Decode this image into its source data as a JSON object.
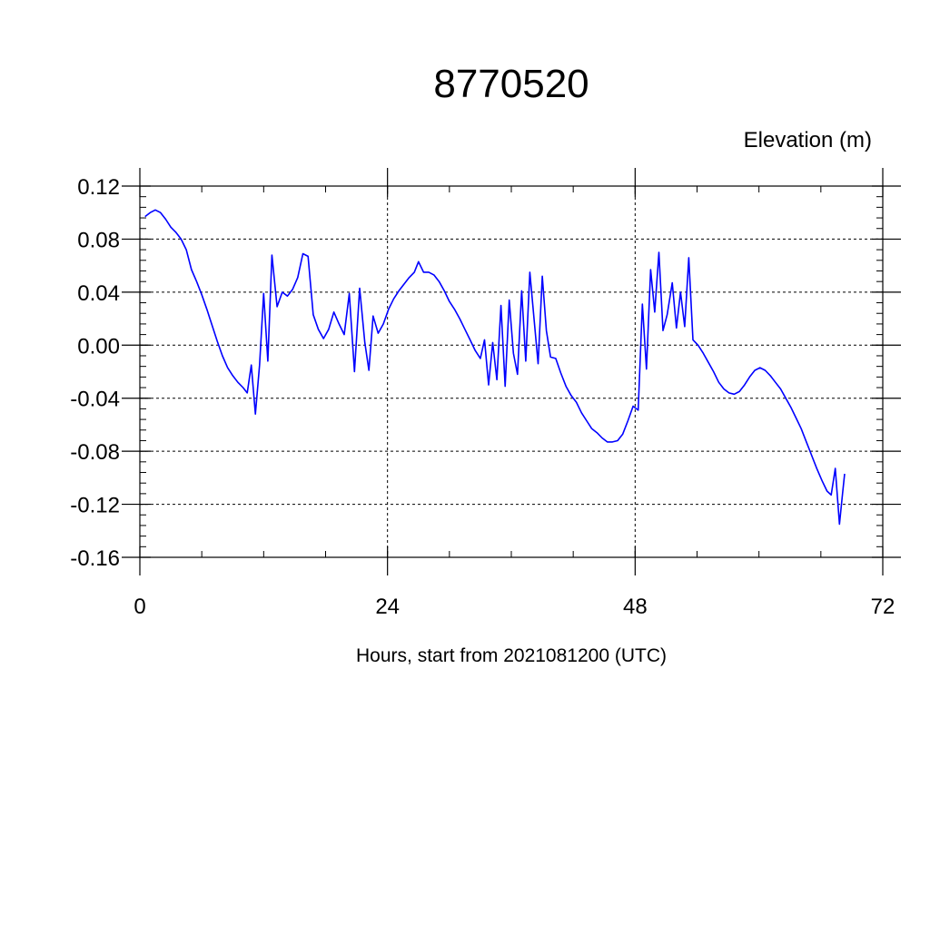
{
  "chart_data": {
    "type": "line",
    "title": "8770520",
    "subtitle": "Elevation (m)",
    "xlabel": "Hours, start from 2021081200 (UTC)",
    "ylabel": "",
    "xlim": [
      0,
      72
    ],
    "ylim": [
      -0.16,
      0.12
    ],
    "xticks": [
      0,
      24,
      48,
      72
    ],
    "xtick_labels": [
      "0",
      "24",
      "48",
      "72"
    ],
    "yticks": [
      -0.16,
      -0.12,
      -0.08,
      -0.04,
      0.0,
      0.04,
      0.08,
      0.12
    ],
    "ytick_labels": [
      "-0.16",
      "-0.12",
      "-0.08",
      "-0.04",
      "0.00",
      "0.04",
      "0.08",
      "0.12"
    ],
    "grid": true,
    "legend": "none",
    "series": [
      {
        "color": "#0000ff",
        "points": [
          [
            0.5,
            0.097
          ],
          [
            1.0,
            0.1
          ],
          [
            1.5,
            0.102
          ],
          [
            2.0,
            0.1
          ],
          [
            2.5,
            0.095
          ],
          [
            3.0,
            0.089
          ],
          [
            3.5,
            0.085
          ],
          [
            4.0,
            0.08
          ],
          [
            4.5,
            0.072
          ],
          [
            5.0,
            0.057
          ],
          [
            5.5,
            0.048
          ],
          [
            6.0,
            0.038
          ],
          [
            6.5,
            0.027
          ],
          [
            7.0,
            0.015
          ],
          [
            7.5,
            0.003
          ],
          [
            8.0,
            -0.008
          ],
          [
            8.5,
            -0.017
          ],
          [
            9.0,
            -0.023
          ],
          [
            9.5,
            -0.028
          ],
          [
            10.0,
            -0.032
          ],
          [
            10.4,
            -0.036
          ],
          [
            10.8,
            -0.015
          ],
          [
            11.2,
            -0.052
          ],
          [
            11.6,
            -0.015
          ],
          [
            12.0,
            0.039
          ],
          [
            12.4,
            -0.012
          ],
          [
            12.8,
            0.068
          ],
          [
            13.3,
            0.029
          ],
          [
            13.8,
            0.04
          ],
          [
            14.3,
            0.037
          ],
          [
            14.8,
            0.042
          ],
          [
            15.3,
            0.051
          ],
          [
            15.8,
            0.069
          ],
          [
            16.3,
            0.067
          ],
          [
            16.8,
            0.023
          ],
          [
            17.3,
            0.012
          ],
          [
            17.8,
            0.005
          ],
          [
            18.3,
            0.012
          ],
          [
            18.8,
            0.025
          ],
          [
            19.3,
            0.016
          ],
          [
            19.8,
            0.008
          ],
          [
            20.3,
            0.039
          ],
          [
            20.8,
            -0.02
          ],
          [
            21.3,
            0.043
          ],
          [
            21.8,
            0.002
          ],
          [
            22.2,
            -0.019
          ],
          [
            22.6,
            0.022
          ],
          [
            23.1,
            0.009
          ],
          [
            23.6,
            0.016
          ],
          [
            24.1,
            0.027
          ],
          [
            24.6,
            0.035
          ],
          [
            25.1,
            0.041
          ],
          [
            25.6,
            0.046
          ],
          [
            26.1,
            0.051
          ],
          [
            26.6,
            0.055
          ],
          [
            27.0,
            0.063
          ],
          [
            27.5,
            0.055
          ],
          [
            28.0,
            0.055
          ],
          [
            28.5,
            0.053
          ],
          [
            29.0,
            0.048
          ],
          [
            29.5,
            0.041
          ],
          [
            30.0,
            0.033
          ],
          [
            30.5,
            0.027
          ],
          [
            31.0,
            0.02
          ],
          [
            31.5,
            0.012
          ],
          [
            32.0,
            0.004
          ],
          [
            32.5,
            -0.004
          ],
          [
            33.0,
            -0.01
          ],
          [
            33.4,
            0.004
          ],
          [
            33.8,
            -0.03
          ],
          [
            34.2,
            0.002
          ],
          [
            34.6,
            -0.026
          ],
          [
            35.0,
            0.03
          ],
          [
            35.4,
            -0.031
          ],
          [
            35.8,
            0.034
          ],
          [
            36.2,
            -0.006
          ],
          [
            36.6,
            -0.022
          ],
          [
            37.0,
            0.041
          ],
          [
            37.4,
            -0.012
          ],
          [
            37.8,
            0.055
          ],
          [
            38.2,
            0.02
          ],
          [
            38.6,
            -0.014
          ],
          [
            39.0,
            0.052
          ],
          [
            39.4,
            0.011
          ],
          [
            39.8,
            -0.009
          ],
          [
            40.3,
            -0.01
          ],
          [
            40.8,
            -0.021
          ],
          [
            41.3,
            -0.031
          ],
          [
            41.8,
            -0.038
          ],
          [
            42.3,
            -0.043
          ],
          [
            42.8,
            -0.051
          ],
          [
            43.3,
            -0.057
          ],
          [
            43.8,
            -0.063
          ],
          [
            44.3,
            -0.066
          ],
          [
            44.8,
            -0.07
          ],
          [
            45.3,
            -0.073
          ],
          [
            45.8,
            -0.073
          ],
          [
            46.3,
            -0.072
          ],
          [
            46.8,
            -0.067
          ],
          [
            47.3,
            -0.057
          ],
          [
            47.8,
            -0.046
          ],
          [
            48.3,
            -0.049
          ],
          [
            48.7,
            0.031
          ],
          [
            49.1,
            -0.018
          ],
          [
            49.5,
            0.057
          ],
          [
            49.9,
            0.025
          ],
          [
            50.3,
            0.07
          ],
          [
            50.7,
            0.011
          ],
          [
            51.1,
            0.023
          ],
          [
            51.6,
            0.047
          ],
          [
            52.0,
            0.013
          ],
          [
            52.4,
            0.04
          ],
          [
            52.8,
            0.014
          ],
          [
            53.2,
            0.066
          ],
          [
            53.6,
            0.004
          ],
          [
            54.1,
            0.0
          ],
          [
            54.6,
            -0.006
          ],
          [
            55.1,
            -0.013
          ],
          [
            55.6,
            -0.02
          ],
          [
            56.1,
            -0.028
          ],
          [
            56.6,
            -0.033
          ],
          [
            57.1,
            -0.036
          ],
          [
            57.6,
            -0.037
          ],
          [
            58.1,
            -0.035
          ],
          [
            58.6,
            -0.03
          ],
          [
            59.1,
            -0.024
          ],
          [
            59.6,
            -0.019
          ],
          [
            60.1,
            -0.017
          ],
          [
            60.6,
            -0.019
          ],
          [
            61.1,
            -0.023
          ],
          [
            61.6,
            -0.028
          ],
          [
            62.1,
            -0.033
          ],
          [
            62.6,
            -0.04
          ],
          [
            63.1,
            -0.047
          ],
          [
            63.6,
            -0.055
          ],
          [
            64.1,
            -0.063
          ],
          [
            64.6,
            -0.073
          ],
          [
            65.1,
            -0.083
          ],
          [
            65.6,
            -0.093
          ],
          [
            66.1,
            -0.102
          ],
          [
            66.6,
            -0.11
          ],
          [
            67.0,
            -0.113
          ],
          [
            67.4,
            -0.093
          ],
          [
            67.8,
            -0.135
          ],
          [
            68.1,
            -0.112
          ],
          [
            68.3,
            -0.097
          ]
        ]
      }
    ]
  }
}
